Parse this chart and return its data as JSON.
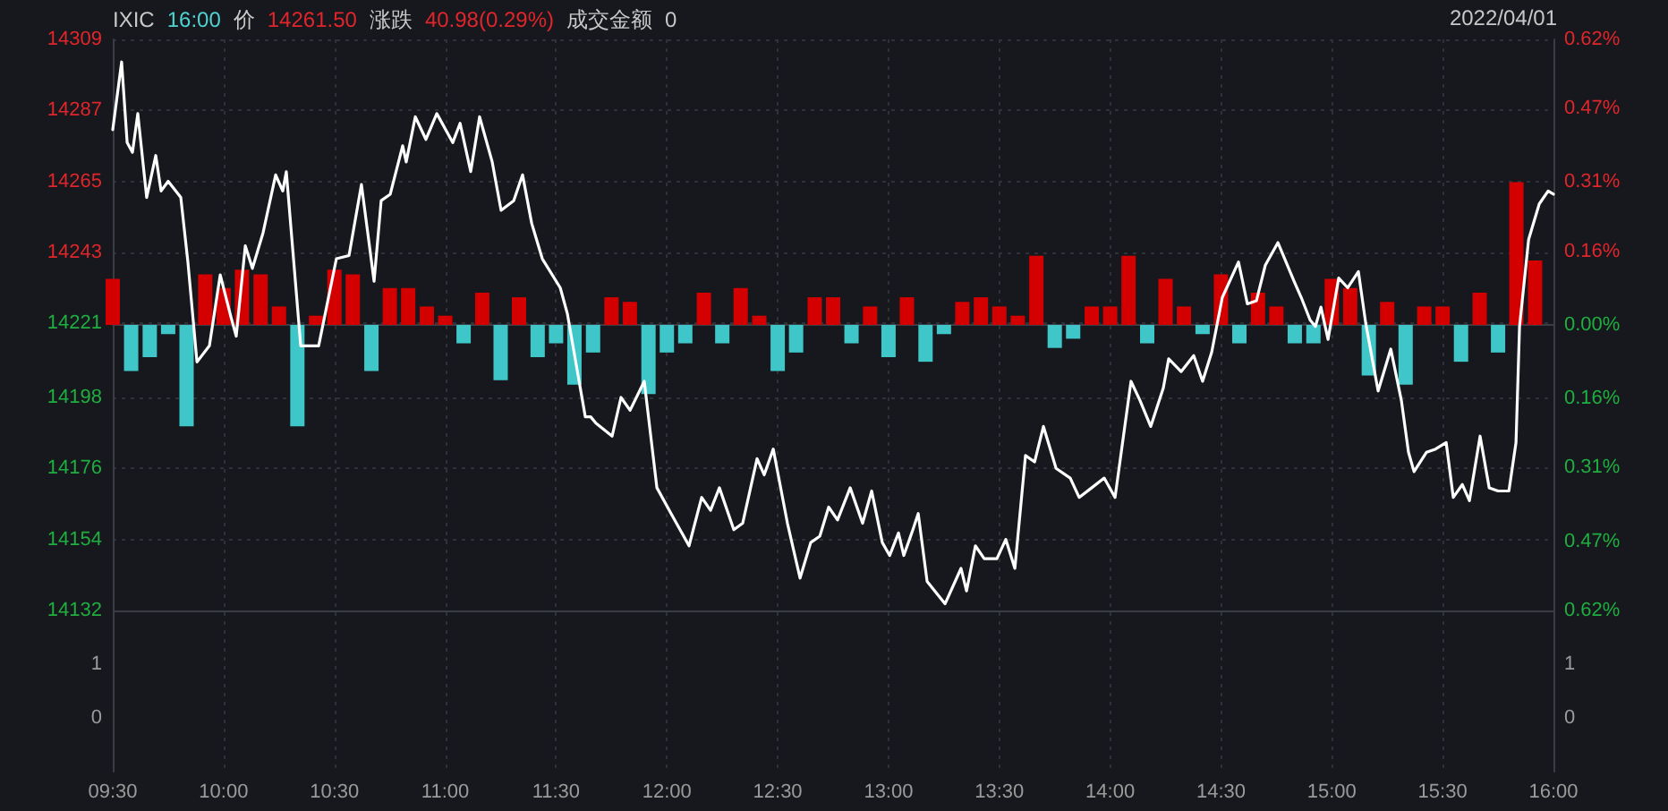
{
  "chart_data": [
    {
      "type": "line",
      "annotations": [
        "IXIC",
        "16:00",
        "价",
        "14261.50",
        "涨跌",
        "40.98(0.29%)",
        "成交金额",
        "0",
        "2022/04/01"
      ],
      "xlim": [
        9.5,
        16
      ],
      "xticks": [
        {
          "value": 9.5,
          "label": "09:30"
        },
        {
          "value": 10,
          "label": "10:00"
        },
        {
          "value": 10.5,
          "label": "10:30"
        },
        {
          "value": 11,
          "label": "11:00"
        },
        {
          "value": 11.5,
          "label": "11:30"
        },
        {
          "value": 12,
          "label": "12:00"
        },
        {
          "value": 12.5,
          "label": "12:30"
        },
        {
          "value": 13,
          "label": "13:00"
        },
        {
          "value": 13.5,
          "label": "13:30"
        },
        {
          "value": 14,
          "label": "14:00"
        },
        {
          "value": 14.5,
          "label": "14:30"
        },
        {
          "value": 15,
          "label": "15:00"
        },
        {
          "value": 15.5,
          "label": "15:30"
        },
        {
          "value": 16,
          "label": "16:00"
        }
      ],
      "ylim": [
        14082,
        14309
      ],
      "yticks": [
        14132,
        14154,
        14176,
        14198,
        14221,
        14243,
        14265,
        14287,
        14309
      ],
      "y2lim": [
        -0.97,
        0.62
      ],
      "y2ticks": [
        {
          "value": -0.62,
          "label": "0.62%"
        },
        {
          "value": -0.47,
          "label": "0.47%"
        },
        {
          "value": -0.31,
          "label": "0.31%"
        },
        {
          "value": -0.16,
          "label": "0.16%"
        },
        {
          "value": 0,
          "label": "0.00%"
        },
        {
          "value": 0.16,
          "label": "0.16%"
        },
        {
          "value": 0.31,
          "label": "0.31%"
        },
        {
          "value": 0.47,
          "label": "0.47%"
        },
        {
          "value": 0.62,
          "label": "0.62%"
        }
      ],
      "grid": true,
      "marker": "none",
      "series": [
        {
          "type": "bar",
          "axis": "y2",
          "color": "#d40000",
          "x": [
            9.5,
            9.917,
            10.0,
            10.083,
            10.167,
            10.25,
            10.417,
            10.5,
            10.583,
            10.75,
            10.833,
            10.917,
            11.0,
            11.167,
            11.333,
            11.75,
            11.833,
            12.167,
            12.333,
            12.417,
            12.667,
            12.75,
            12.917,
            13.083,
            13.333,
            13.417,
            13.5,
            13.583,
            13.667,
            13.917,
            14.0,
            14.083,
            14.25,
            14.333,
            14.5,
            14.667,
            14.75,
            15.0,
            15.083,
            15.25,
            15.417,
            15.5,
            15.667,
            15.833,
            15.917
          ],
          "values": [
            0.1,
            0.11,
            0.08,
            0.12,
            0.11,
            0.04,
            0.02,
            0.12,
            0.11,
            0.08,
            0.08,
            0.04,
            0.02,
            0.07,
            0.06,
            0.06,
            0.05,
            0.07,
            0.08,
            0.02,
            0.06,
            0.06,
            0.04,
            0.06,
            0.05,
            0.06,
            0.04,
            0.02,
            0.15,
            0.04,
            0.04,
            0.15,
            0.1,
            0.04,
            0.11,
            0.07,
            0.04,
            0.1,
            0.08,
            0.05,
            0.04,
            0.04,
            0.07,
            0.31,
            0.14
          ]
        },
        {
          "type": "bar",
          "axis": "y2",
          "color": "#3fc6c8",
          "x": [
            9.583,
            9.667,
            9.75,
            9.833,
            10.333,
            10.667,
            11.083,
            11.25,
            11.417,
            11.5,
            11.583,
            11.667,
            11.917,
            12.0,
            12.083,
            12.25,
            12.5,
            12.583,
            12.833,
            13.0,
            13.167,
            13.25,
            13.75,
            13.833,
            14.167,
            14.417,
            14.583,
            14.833,
            14.917,
            15.167,
            15.333,
            15.583,
            15.75
          ],
          "values": [
            -0.1,
            -0.07,
            -0.02,
            -0.22,
            -0.22,
            -0.1,
            -0.04,
            -0.12,
            -0.07,
            -0.04,
            -0.13,
            -0.06,
            -0.15,
            -0.06,
            -0.04,
            -0.04,
            -0.1,
            -0.06,
            -0.04,
            -0.07,
            -0.08,
            -0.02,
            -0.05,
            -0.03,
            -0.04,
            -0.02,
            -0.04,
            -0.04,
            -0.04,
            -0.11,
            -0.13,
            -0.08,
            -0.06
          ]
        },
        {
          "color": "#ffffff",
          "x": [
            9.5,
            9.54,
            9.565,
            9.589,
            9.613,
            9.653,
            9.694,
            9.718,
            9.75,
            9.807,
            9.839,
            9.88,
            9.936,
            9.985,
            10.033,
            10.057,
            10.098,
            10.13,
            10.178,
            10.235,
            10.267,
            10.283,
            10.348,
            10.429,
            10.509,
            10.566,
            10.622,
            10.679,
            10.711,
            10.752,
            10.808,
            10.824,
            10.865,
            10.913,
            10.962,
            11.034,
            11.067,
            11.115,
            11.155,
            11.212,
            11.252,
            11.309,
            11.349,
            11.39,
            11.438,
            11.519,
            11.551,
            11.599,
            11.632,
            11.656,
            11.68,
            11.753,
            11.793,
            11.834,
            11.898,
            11.955,
            12.019,
            12.1,
            12.157,
            12.197,
            12.237,
            12.302,
            12.342,
            12.407,
            12.439,
            12.48,
            12.544,
            12.601,
            12.649,
            12.69,
            12.73,
            12.77,
            12.827,
            12.883,
            12.924,
            12.972,
            13.005,
            13.045,
            13.069,
            13.11,
            13.134,
            13.174,
            13.255,
            13.327,
            13.352,
            13.392,
            13.432,
            13.489,
            13.529,
            13.57,
            13.618,
            13.659,
            13.699,
            13.756,
            13.82,
            13.86,
            13.917,
            13.973,
            14.022,
            14.094,
            14.135,
            14.183,
            14.24,
            14.264,
            14.32,
            14.377,
            14.417,
            14.458,
            14.506,
            14.579,
            14.619,
            14.66,
            14.7,
            14.757,
            14.83,
            14.862,
            14.902,
            14.926,
            14.951,
            14.983,
            15.031,
            15.072,
            15.12,
            15.153,
            15.209,
            15.266,
            15.314,
            15.346,
            15.371,
            15.427,
            15.468,
            15.516,
            15.548,
            15.589,
            15.621,
            15.669,
            15.71,
            15.75,
            15.799,
            15.831,
            15.847,
            15.888,
            15.936,
            15.976,
            16.0
          ],
          "values": [
            14281,
            14302,
            14277,
            14274,
            14286,
            14260,
            14273,
            14262,
            14265,
            14260,
            14240,
            14209,
            14214,
            14236,
            14223,
            14217,
            14245,
            14238,
            14249,
            14267,
            14262,
            14268,
            14214,
            14214,
            14241,
            14242,
            14264,
            14234,
            14259,
            14261,
            14276,
            14271,
            14285,
            14278,
            14286,
            14277,
            14283,
            14268,
            14285,
            14271,
            14256,
            14259,
            14267,
            14252,
            14241,
            14232,
            14224,
            14205,
            14192,
            14192,
            14190,
            14186,
            14198,
            14194,
            14203,
            14170,
            14162,
            14152,
            14167,
            14163,
            14170,
            14157,
            14159,
            14179,
            14174,
            14182,
            14159,
            14142,
            14153,
            14155,
            14164,
            14160,
            14170,
            14159,
            14169,
            14153,
            14149,
            14156,
            14149,
            14157,
            14162,
            14141,
            14134,
            14145,
            14138,
            14152,
            14148,
            14148,
            14154,
            14145,
            14180,
            14178,
            14189,
            14176,
            14173,
            14167,
            14170,
            14173,
            14167,
            14203,
            14197,
            14189,
            14201,
            14210,
            14206,
            14211,
            14203,
            14212,
            14229,
            14240,
            14227,
            14228,
            14239,
            14246,
            14234,
            14229,
            14222,
            14220,
            14226,
            14216,
            14235,
            14232,
            14237,
            14221,
            14200,
            14213,
            14197,
            14181,
            14175,
            14181,
            14182,
            14184,
            14167,
            14171,
            14166,
            14186,
            14170,
            14169,
            14169,
            14184,
            14220,
            14247,
            14258,
            14262,
            14261
          ]
        }
      ]
    },
    {
      "type": "other",
      "annotations": [
        "1",
        "0",
        "1",
        "0"
      ]
    }
  ]
}
